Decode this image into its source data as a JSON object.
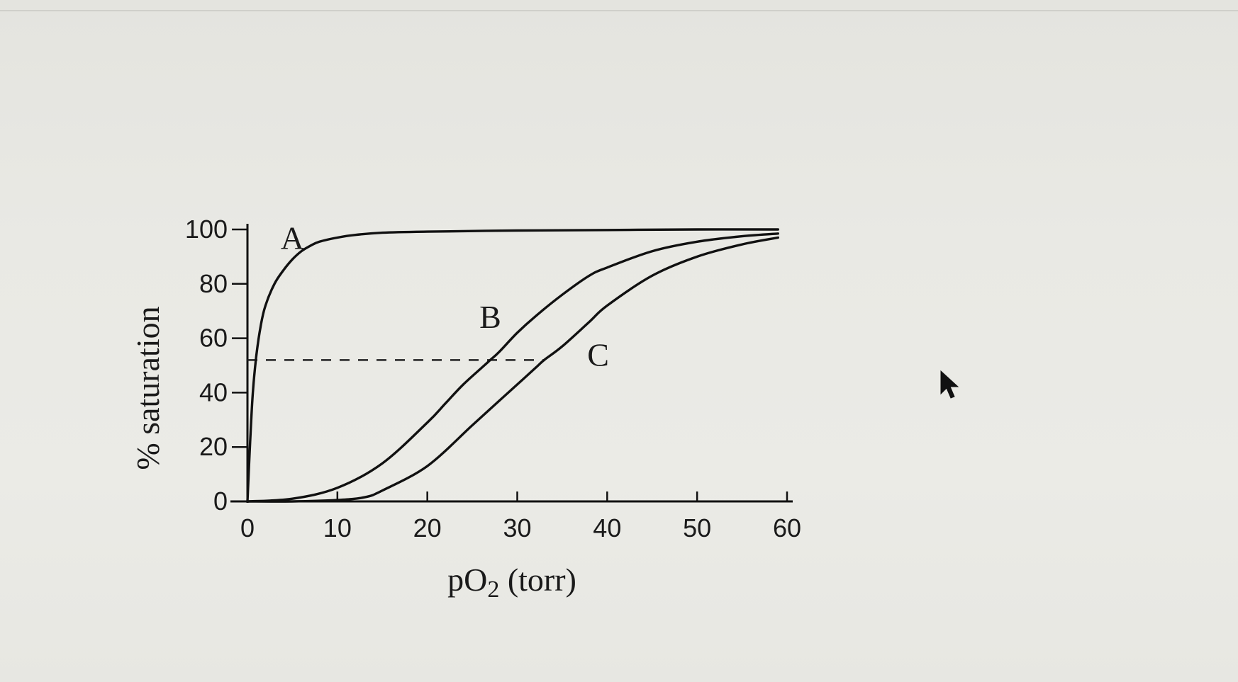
{
  "chart_data": {
    "type": "line",
    "title": "",
    "xlabel": "pO2 (torr)",
    "xlabel_base": "pO",
    "xlabel_sub": "2",
    "xlabel_rest": " (torr)",
    "ylabel": "% saturation",
    "xlim": [
      0,
      60
    ],
    "ylim": [
      0,
      100
    ],
    "xticks": [
      0,
      10,
      20,
      30,
      40,
      50,
      60
    ],
    "xtick_labels": [
      "0",
      "10",
      "20",
      "30",
      "40",
      "50",
      "60"
    ],
    "yticks": [
      0,
      20,
      40,
      60,
      80,
      100
    ],
    "ytick_labels": [
      "0",
      "20",
      "40",
      "60",
      "80",
      "100"
    ],
    "grid": false,
    "legend": "none",
    "series": [
      {
        "name": "A",
        "x": [
          0,
          0.3,
          0.6,
          1,
          1.5,
          2,
          3,
          4,
          5,
          6,
          7,
          8,
          10,
          12,
          15,
          20,
          30,
          40,
          50,
          59
        ],
        "y": [
          0,
          22,
          40,
          54,
          65,
          72,
          80,
          85,
          89,
          92,
          94,
          95.5,
          97,
          98,
          98.8,
          99.2,
          99.6,
          99.8,
          100,
          100
        ]
      },
      {
        "name": "B",
        "x": [
          0,
          5,
          10,
          15,
          20,
          22,
          24,
          26,
          27,
          28,
          30,
          32,
          35,
          38,
          40,
          45,
          50,
          55,
          59
        ],
        "y": [
          0,
          1,
          5,
          14,
          29,
          36,
          43,
          49,
          52,
          55,
          62,
          68,
          76,
          83,
          86,
          92,
          95.5,
          97.5,
          98.5
        ]
      },
      {
        "name": "C",
        "x": [
          0,
          5,
          10,
          13,
          15,
          20,
          25,
          28,
          30,
          32,
          33,
          35,
          38,
          40,
          45,
          50,
          55,
          59
        ],
        "y": [
          0,
          0,
          0.5,
          1.5,
          4,
          13,
          28,
          37,
          43,
          49,
          52,
          57,
          66,
          72,
          83,
          90,
          94.5,
          97
        ]
      }
    ],
    "annotations": [
      {
        "type": "hline-dashed",
        "y": 52,
        "x_from": 0,
        "x_to": 33
      }
    ],
    "series_label_positions": [
      {
        "label": "A",
        "x": 5,
        "y": 97
      },
      {
        "label": "B",
        "x": 27,
        "y": 68
      },
      {
        "label": "C",
        "x": 39,
        "y": 54
      }
    ]
  },
  "ui": {
    "pointer": "arrow-cursor-icon"
  }
}
